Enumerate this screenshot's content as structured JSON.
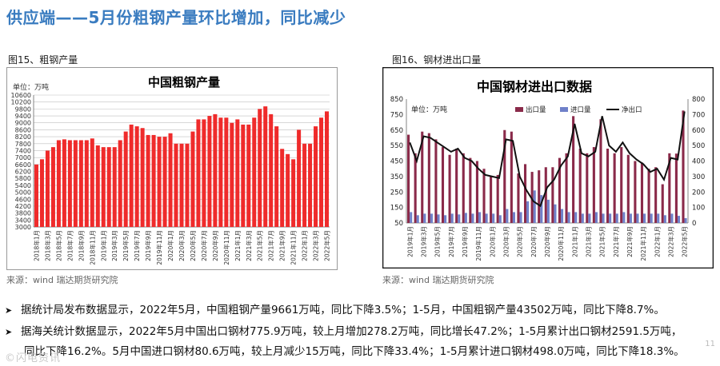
{
  "page": {
    "title": "供应端——5月份粗钢产量环比增加，同比减少",
    "page_number": "11",
    "watermark": "©闪电资讯"
  },
  "figure15": {
    "caption": "图15、粗钢产量",
    "source": "来源：wind    瑞达期货研究院"
  },
  "figure16": {
    "caption": "图16、钢材进出口量",
    "source": "来源：wind    瑞达期货研究院"
  },
  "bullets": [
    "据统计局发布数据显示，2022年5月，中国粗钢产量9661万吨，同比下降3.5%；1-5月，中国粗钢产量43502万吨，同比下降8.7%。",
    "据海关统计数据显示，2022年5月中国出口钢材775.9万吨，较上月增加278.2万吨，同比增长47.2%；1-5月累计出口钢材2591.5万吨，"
  ],
  "bullet_continuation": "同比下降16.2%。5月中国进口钢材80.6万吨，较上月减少15万吨，同比下降33.4%；1-5月累计进口钢材498.0万吨，同比下降18.3%。",
  "colors": {
    "title_blue": "#3a7cc0",
    "crude_bar": "#ef2b2b",
    "export_bar": "#8a2a4a",
    "import_bar": "#6f80c9",
    "net_line": "#111111",
    "grid": "#bfbfbf"
  },
  "chart_data": [
    {
      "type": "bar",
      "title": "中国粗钢产量",
      "unit": "单位：万吨",
      "ylim": [
        3000,
        10600
      ],
      "yticks": [
        3000,
        3400,
        3800,
        4200,
        4600,
        5000,
        5400,
        5800,
        6200,
        6600,
        7000,
        7400,
        7800,
        8200,
        8600,
        9000,
        9400,
        9800,
        10200,
        10600
      ],
      "xticks": [
        "2018年1月",
        "2018年3月",
        "2018年5月",
        "2018年7月",
        "2018年9月",
        "2018年11月",
        "2019年1月",
        "2019年3月",
        "2019年5月",
        "2019年7月",
        "2019年9月",
        "2019年11月",
        "2020年1月",
        "2020年3月",
        "2020年5月",
        "2020年7月",
        "2020年9月",
        "2020年11月",
        "2021年1月",
        "2021年3月",
        "2021年5月",
        "2021年7月",
        "2021年9月",
        "2021年11月",
        "2022年1月",
        "2022年3月",
        "2022年5月"
      ],
      "categories": [
        "2018-01",
        "2018-02",
        "2018-03",
        "2018-04",
        "2018-05",
        "2018-06",
        "2018-07",
        "2018-08",
        "2018-09",
        "2018-10",
        "2018-11",
        "2018-12",
        "2019-01",
        "2019-02",
        "2019-03",
        "2019-04",
        "2019-05",
        "2019-06",
        "2019-07",
        "2019-08",
        "2019-09",
        "2019-10",
        "2019-11",
        "2019-12",
        "2020-01",
        "2020-02",
        "2020-03",
        "2020-04",
        "2020-05",
        "2020-06",
        "2020-07",
        "2020-08",
        "2020-09",
        "2020-10",
        "2020-11",
        "2020-12",
        "2021-01",
        "2021-02",
        "2021-03",
        "2021-04",
        "2021-05",
        "2021-06",
        "2021-07",
        "2021-08",
        "2021-09",
        "2021-10",
        "2021-11",
        "2021-12",
        "2022-01",
        "2022-02",
        "2022-03",
        "2022-04",
        "2022-05"
      ],
      "values": [
        6600,
        6900,
        7400,
        7600,
        8000,
        8050,
        8000,
        8000,
        8000,
        8000,
        8100,
        7700,
        7600,
        7600,
        7600,
        8000,
        8500,
        8900,
        8800,
        8700,
        8300,
        8300,
        8200,
        8200,
        8400,
        7800,
        7800,
        7800,
        8500,
        9200,
        9200,
        9400,
        9500,
        9300,
        9300,
        9000,
        9200,
        8900,
        8900,
        9300,
        9800,
        9950,
        9500,
        8800,
        7500,
        7200,
        6900,
        8600,
        7800,
        7800,
        8800,
        9300,
        9661
      ]
    },
    {
      "type": "bar+line",
      "title": "中国钢材进出口数据",
      "unit": "单位：万吨",
      "left_axis": {
        "ylim": [
          50,
          850
        ],
        "ticks": [
          50,
          150,
          250,
          350,
          450,
          550,
          650,
          750,
          850
        ]
      },
      "right_axis": {
        "ylim": [
          0,
          800
        ],
        "ticks": [
          0,
          100,
          200,
          300,
          400,
          500,
          600,
          700,
          800
        ]
      },
      "legend": [
        "出口量",
        "进口量",
        "净出口"
      ],
      "xticks": [
        "2019年1月",
        "2019年3月",
        "2019年5月",
        "2019年7月",
        "2019年9月",
        "2019年11月",
        "2020年1月",
        "2020年3月",
        "2020年5月",
        "2020年7月",
        "2020年9月",
        "2020年11月",
        "2021年1月",
        "2021年3月",
        "2021年5月",
        "2021年7月",
        "2021年9月",
        "2021年11月",
        "2022年1月",
        "2022年3月",
        "2022年5月"
      ],
      "categories": [
        "2019-01",
        "2019-02",
        "2019-03",
        "2019-04",
        "2019-05",
        "2019-06",
        "2019-07",
        "2019-08",
        "2019-09",
        "2019-10",
        "2019-11",
        "2019-12",
        "2020-01",
        "2020-02",
        "2020-03",
        "2020-04",
        "2020-05",
        "2020-06",
        "2020-07",
        "2020-08",
        "2020-09",
        "2020-10",
        "2020-11",
        "2020-12",
        "2021-01",
        "2021-02",
        "2021-03",
        "2021-04",
        "2021-05",
        "2021-06",
        "2021-07",
        "2021-08",
        "2021-09",
        "2021-10",
        "2021-11",
        "2021-12",
        "2022-01",
        "2022-02",
        "2022-03",
        "2022-04",
        "2022-05"
      ],
      "series": [
        {
          "name": "出口量",
          "axis": "left",
          "values": [
            620,
            500,
            640,
            630,
            590,
            540,
            490,
            530,
            500,
            470,
            450,
            400,
            350,
            360,
            650,
            640,
            370,
            430,
            380,
            390,
            410,
            410,
            470,
            500,
            740,
            530,
            500,
            540,
            720,
            530,
            500,
            540,
            490,
            450,
            440,
            400,
            410,
            300,
            500,
            498,
            776
          ]
        },
        {
          "name": "进口量",
          "axis": "left",
          "values": [
            120,
            100,
            110,
            110,
            105,
            100,
            110,
            105,
            115,
            110,
            120,
            110,
            110,
            100,
            140,
            120,
            120,
            190,
            260,
            230,
            200,
            170,
            140,
            120,
            120,
            110,
            110,
            120,
            110,
            110,
            110,
            120,
            110,
            110,
            110,
            110,
            110,
            100,
            110,
            96,
            81
          ]
        },
        {
          "name": "净出口",
          "axis": "right",
          "type": "line",
          "values": [
            520,
            400,
            560,
            550,
            520,
            490,
            460,
            480,
            420,
            400,
            350,
            310,
            300,
            290,
            540,
            530,
            300,
            210,
            140,
            110,
            230,
            280,
            370,
            430,
            640,
            450,
            430,
            460,
            690,
            500,
            460,
            520,
            450,
            410,
            380,
            330,
            350,
            280,
            420,
            410,
            720
          ]
        }
      ]
    }
  ]
}
